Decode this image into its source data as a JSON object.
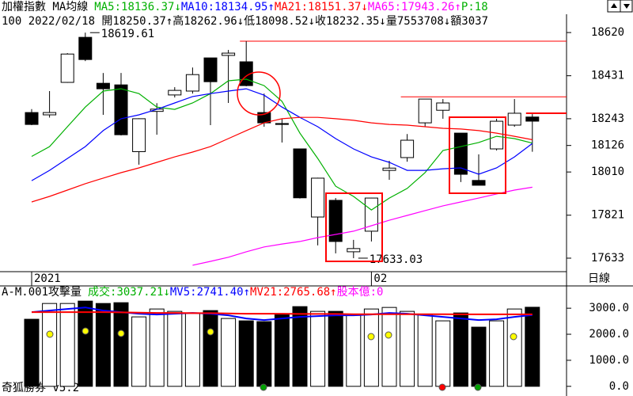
{
  "chart_data": [
    {
      "type": "candlestick",
      "title": "加權指數 MA均線",
      "subtitle": "100 2022/02/18 開18250.37↑高18262.96↓低18098.52↓收18232.35↓量7553708↓額3037",
      "categories": [
        "2021",
        null,
        null,
        null,
        null,
        null,
        null,
        null,
        null,
        null,
        null,
        null,
        null,
        null,
        null,
        null,
        null,
        null,
        null,
        "02",
        null,
        null,
        null,
        null,
        null,
        null,
        null,
        null,
        null
      ],
      "open": [
        18270,
        18260,
        18402,
        18599,
        18398,
        18391,
        18099,
        18275,
        18347,
        18364,
        18509,
        18520,
        18492,
        18270,
        18222,
        18111,
        17813,
        17886,
        17661,
        17751,
        18017,
        18073,
        18225,
        18280,
        18180,
        17973,
        18111,
        18215,
        18250.37
      ],
      "high": [
        18285,
        18364,
        18530,
        18619.61,
        18443,
        18443,
        18245,
        18311,
        18381,
        18467,
        18509,
        18544,
        18582,
        18353,
        18243,
        18111,
        17985,
        17896,
        17713,
        17897,
        18059,
        18176,
        18329,
        18329,
        18180,
        18087,
        18243,
        18329,
        18262.96
      ],
      "low": [
        18215,
        18248,
        18400,
        18495,
        18260,
        18170,
        18042,
        18173,
        18336,
        18353,
        18215,
        18312,
        18385,
        18208,
        18139,
        17894,
        17689,
        17654,
        17633.03,
        17706,
        17976,
        18055,
        18208,
        18243,
        17966,
        17952,
        18104,
        18208,
        18098.52
      ],
      "close": [
        18218,
        18270,
        18526,
        18502,
        18374,
        18173,
        18243,
        18285,
        18367,
        18436,
        18405,
        18530,
        18388,
        18225,
        18218,
        17897,
        17983,
        17706,
        17675,
        17896,
        18027,
        18149,
        18329,
        18312,
        18000,
        17952,
        18232,
        18267,
        18232.35
      ],
      "up_color": "#ffffff",
      "down_color": "#000000",
      "series": [
        {
          "name": "MA5:18136.37↓",
          "color": "#00b000",
          "values": [
            18078,
            18121,
            18208,
            18294,
            18364,
            18374,
            18353,
            18294,
            18284,
            18312,
            18353,
            18409,
            18416,
            18388,
            18319,
            18180,
            18069,
            17948,
            17903,
            17844,
            17896,
            17938,
            18007,
            18104,
            18121,
            18139,
            18166,
            18156,
            18136.37
          ]
        },
        {
          "name": "MA10:18134.95↑",
          "color": "#0000ff",
          "values": [
            17972,
            18017,
            18069,
            18121,
            18191,
            18243,
            18260,
            18284,
            18312,
            18340,
            18353,
            18364,
            18374,
            18346,
            18294,
            18249,
            18208,
            18156,
            18111,
            18076,
            18052,
            18017,
            18017,
            18024,
            18028,
            18000,
            18028,
            18076,
            18134.95
          ]
        },
        {
          "name": "MA21:18151.37↓",
          "color": "#ff0000",
          "values": [
            17879,
            17903,
            17931,
            17959,
            17983,
            18007,
            18028,
            18052,
            18076,
            18097,
            18121,
            18156,
            18191,
            18225,
            18243,
            18249,
            18249,
            18243,
            18236,
            18225,
            18218,
            18215,
            18208,
            18201,
            18198,
            18191,
            18180,
            18166,
            18151.37
          ]
        },
        {
          "name": "MA65:17943.26↑",
          "color": "#ff00ff",
          "values": [
            null,
            null,
            null,
            null,
            null,
            null,
            null,
            null,
            null,
            17602,
            17619,
            17637,
            17661,
            17682,
            17695,
            17706,
            17723,
            17737,
            17751,
            17775,
            17799,
            17820,
            17841,
            17862,
            17879,
            17896,
            17914,
            17931,
            17943.26
          ]
        }
      ],
      "extra_legend": {
        "text": "P:18",
        "color": "#00b000"
      },
      "annotations": [
        {
          "text": "18619.61",
          "value": 18619.61,
          "index": 3
        },
        {
          "text": "17633.03",
          "value": 17633.03,
          "index": 18
        }
      ],
      "reference_lines": [
        {
          "value": 18582,
          "start": 12
        },
        {
          "value": 18339,
          "start": 21
        },
        {
          "value": 18267,
          "start": 28
        }
      ],
      "ylim": [
        17574,
        18700
      ],
      "yticks": [
        18620,
        18431,
        18243,
        18126,
        18010,
        17821,
        17633
      ]
    },
    {
      "type": "bar",
      "title": "A-M.001攻擊量",
      "series": [
        {
          "name": "成交:3037.21↓",
          "color": "#00b000",
          "values": [
            2576,
            3182,
            3182,
            3273,
            3182,
            3212,
            2667,
            2970,
            2879,
            2818,
            2909,
            2606,
            2515,
            2485,
            2788,
            3061,
            2879,
            2879,
            2727,
            2970,
            3030,
            2879,
            2758,
            2515,
            2818,
            2273,
            2515,
            2970,
            3037.21
          ]
        },
        {
          "name": "MV5:2741.40↑",
          "color": "#0000ff",
          "values": [
            2848,
            2909,
            2970,
            3030,
            2909,
            2848,
            2788,
            2758,
            2788,
            2818,
            2788,
            2727,
            2606,
            2545,
            2606,
            2667,
            2697,
            2727,
            2727,
            2758,
            2818,
            2788,
            2727,
            2667,
            2606,
            2545,
            2576,
            2667,
            2741.4
          ]
        },
        {
          "name": "MV21:2765.68↑",
          "color": "#ff0000",
          "values": [
            2850,
            2850,
            2850,
            2850,
            2850,
            2840,
            2830,
            2820,
            2820,
            2810,
            2810,
            2800,
            2790,
            2790,
            2790,
            2780,
            2780,
            2780,
            2770,
            2770,
            2770,
            2770,
            2770,
            2770,
            2765,
            2765,
            2765,
            2765,
            2765.68
          ]
        }
      ],
      "extra_legend": {
        "text": "股本億:0",
        "color": "#ff00ff"
      },
      "ylim": [
        -280,
        3400
      ],
      "yticks": [
        {
          "value": 3000,
          "label": "3000.0"
        },
        {
          "value": 2000,
          "label": "2000.0"
        },
        {
          "value": 1000,
          "label": "1000.0"
        },
        {
          "value": 0,
          "label": "0.0"
        }
      ]
    }
  ],
  "period_label": "日線",
  "footer": "奇狐勝券 v5.2"
}
